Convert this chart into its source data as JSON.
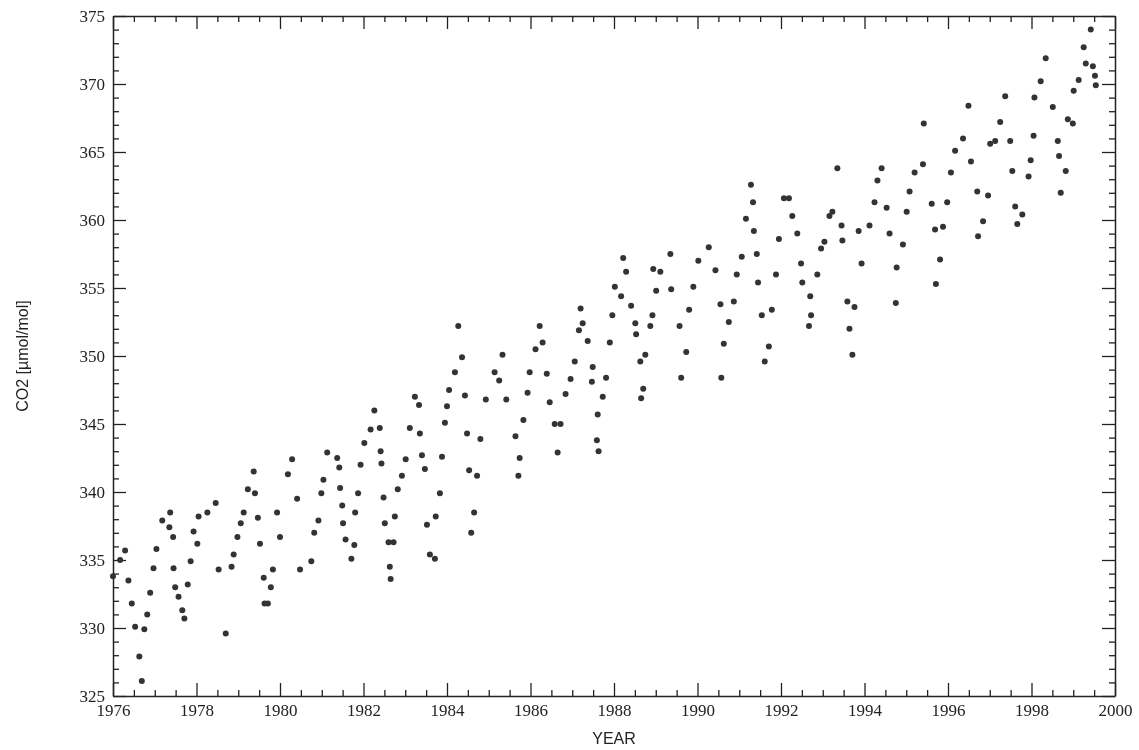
{
  "chart_data": {
    "type": "scatter",
    "xlabel": "YEAR",
    "ylabel": "CO2 [µmol/mol]",
    "marker": "circle",
    "grid": false,
    "xlim": [
      1976,
      2000
    ],
    "ylim": [
      325,
      375
    ],
    "xticks": [
      1976,
      {
        "value": 1976.5,
        "label": null
      },
      {
        "value": 1977,
        "label": null
      },
      {
        "value": 1977.5,
        "label": null
      },
      1978,
      {
        "value": 1978.5,
        "label": null
      },
      {
        "value": 1979,
        "label": null
      },
      {
        "value": 1979.5,
        "label": null
      },
      1980,
      {
        "value": 1980.5,
        "label": null
      },
      {
        "value": 1981,
        "label": null
      },
      {
        "value": 1981.5,
        "label": null
      },
      1982,
      {
        "value": 1982.5,
        "label": null
      },
      {
        "value": 1983,
        "label": null
      },
      {
        "value": 1983.5,
        "label": null
      },
      1984,
      {
        "value": 1984.5,
        "label": null
      },
      {
        "value": 1985,
        "label": null
      },
      {
        "value": 1985.5,
        "label": null
      },
      1986,
      {
        "value": 1986.5,
        "label": null
      },
      {
        "value": 1987,
        "label": null
      },
      {
        "value": 1987.5,
        "label": null
      },
      1988,
      {
        "value": 1988.5,
        "label": null
      },
      {
        "value": 1989,
        "label": null
      },
      {
        "value": 1989.5,
        "label": null
      },
      1990,
      {
        "value": 1990.5,
        "label": null
      },
      {
        "value": 1991,
        "label": null
      },
      {
        "value": 1991.5,
        "label": null
      },
      1992,
      {
        "value": 1992.5,
        "label": null
      },
      {
        "value": 1993,
        "label": null
      },
      {
        "value": 1993.5,
        "label": null
      },
      1994,
      {
        "value": 1994.5,
        "label": null
      },
      {
        "value": 1995,
        "label": null
      },
      {
        "value": 1995.5,
        "label": null
      },
      1996,
      {
        "value": 1996.5,
        "label": null
      },
      {
        "value": 1997,
        "label": null
      },
      {
        "value": 1997.5,
        "label": null
      },
      1998,
      {
        "value": 1998.5,
        "label": null
      },
      {
        "value": 1999,
        "label": null
      },
      {
        "value": 1999.5,
        "label": null
      },
      2000
    ],
    "yticks": [
      325,
      {
        "value": 326,
        "label": null
      },
      {
        "value": 327,
        "label": null
      },
      {
        "value": 328,
        "label": null
      },
      {
        "value": 329,
        "label": null
      },
      330,
      {
        "value": 331,
        "label": null
      },
      {
        "value": 332,
        "label": null
      },
      {
        "value": 333,
        "label": null
      },
      {
        "value": 334,
        "label": null
      },
      335,
      {
        "value": 336,
        "label": null
      },
      {
        "value": 337,
        "label": null
      },
      {
        "value": 338,
        "label": null
      },
      {
        "value": 339,
        "label": null
      },
      340,
      {
        "value": 341,
        "label": null
      },
      {
        "value": 342,
        "label": null
      },
      {
        "value": 343,
        "label": null
      },
      {
        "value": 344,
        "label": null
      },
      345,
      {
        "value": 346,
        "label": null
      },
      {
        "value": 347,
        "label": null
      },
      {
        "value": 348,
        "label": null
      },
      {
        "value": 349,
        "label": null
      },
      350,
      {
        "value": 351,
        "label": null
      },
      {
        "value": 352,
        "label": null
      },
      {
        "value": 353,
        "label": null
      },
      {
        "value": 354,
        "label": null
      },
      355,
      {
        "value": 356,
        "label": null
      },
      {
        "value": 357,
        "label": null
      },
      {
        "value": 358,
        "label": null
      },
      {
        "value": 359,
        "label": null
      },
      360,
      {
        "value": 361,
        "label": null
      },
      {
        "value": 362,
        "label": null
      },
      {
        "value": 363,
        "label": null
      },
      {
        "value": 364,
        "label": null
      },
      365,
      {
        "value": 366,
        "label": null
      },
      {
        "value": 367,
        "label": null
      },
      {
        "value": 368,
        "label": null
      },
      {
        "value": 369,
        "label": null
      },
      370,
      {
        "value": 371,
        "label": null
      },
      {
        "value": 372,
        "label": null
      },
      {
        "value": 373,
        "label": null
      },
      {
        "value": 374,
        "label": null
      },
      375
    ],
    "series": [
      {
        "color": "#333333",
        "x": [
          1976.0,
          1976.17,
          1976.29,
          1976.37,
          1976.45,
          1976.53,
          1976.63,
          1976.69,
          1976.75,
          1976.82,
          1976.89,
          1976.97,
          1977.04,
          1977.18,
          1977.37,
          1977.35,
          1977.44,
          1977.45,
          1977.49,
          1977.57,
          1977.66,
          1977.71,
          1977.79,
          1977.86,
          1977.93,
          1978.02,
          1978.05,
          1978.26,
          1978.46,
          1978.53,
          1978.7,
          1978.84,
          1978.89,
          1978.98,
          1979.06,
          1979.13,
          1979.23,
          1979.37,
          1979.4,
          1979.47,
          1979.52,
          1979.61,
          1979.63,
          1979.71,
          1979.78,
          1979.83,
          1979.93,
          1980.0,
          1980.19,
          1980.29,
          1980.41,
          1980.48,
          1980.75,
          1980.82,
          1980.92,
          1980.99,
          1981.04,
          1981.13,
          1981.37,
          1981.42,
          1981.44,
          1981.49,
          1981.51,
          1981.57,
          1981.71,
          1981.78,
          1981.8,
          1981.87,
          1981.93,
          1982.02,
          1982.17,
          1982.26,
          1982.39,
          1982.41,
          1982.43,
          1982.48,
          1982.51,
          1982.6,
          1982.63,
          1982.65,
          1982.72,
          1982.75,
          1982.82,
          1982.92,
          1983.01,
          1983.11,
          1983.23,
          1983.33,
          1983.35,
          1983.4,
          1983.47,
          1983.52,
          1983.59,
          1983.71,
          1983.73,
          1983.83,
          1983.88,
          1983.95,
          1984.0,
          1984.05,
          1984.19,
          1984.27,
          1984.36,
          1984.43,
          1984.48,
          1984.53,
          1984.58,
          1984.65,
          1984.72,
          1984.8,
          1984.93,
          1985.14,
          1985.25,
          1985.33,
          1985.42,
          1985.64,
          1985.71,
          1985.74,
          1985.83,
          1985.93,
          1985.98,
          1986.12,
          1986.22,
          1986.29,
          1986.39,
          1986.46,
          1986.58,
          1986.65,
          1986.72,
          1986.84,
          1986.96,
          1987.06,
          1987.16,
          1987.2,
          1987.25,
          1987.37,
          1987.47,
          1987.49,
          1987.59,
          1987.61,
          1987.63,
          1987.73,
          1987.81,
          1987.9,
          1987.96,
          1988.02,
          1988.17,
          1988.22,
          1988.29,
          1988.41,
          1988.51,
          1988.53,
          1988.63,
          1988.65,
          1988.7,
          1988.75,
          1988.87,
          1988.92,
          1988.94,
          1989.01,
          1989.11,
          1989.35,
          1989.37,
          1989.57,
          1989.61,
          1989.73,
          1989.8,
          1989.9,
          1990.02,
          1990.27,
          1990.43,
          1990.55,
          1990.57,
          1990.63,
          1990.75,
          1990.87,
          1990.94,
          1991.06,
          1991.16,
          1991.28,
          1991.33,
          1991.35,
          1991.42,
          1991.45,
          1991.54,
          1991.61,
          1991.71,
          1991.78,
          1991.88,
          1991.95,
          1992.07,
          1992.19,
          1992.27,
          1992.39,
          1992.48,
          1992.51,
          1992.67,
          1992.7,
          1992.72,
          1992.87,
          1992.96,
          1993.04,
          1993.16,
          1993.23,
          1993.35,
          1993.45,
          1993.47,
          1993.59,
          1993.64,
          1993.71,
          1993.76,
          1993.86,
          1993.93,
          1994.12,
          1994.24,
          1994.31,
          1994.41,
          1994.53,
          1994.6,
          1994.75,
          1994.77,
          1994.92,
          1995.01,
          1995.08,
          1995.2,
          1995.4,
          1995.42,
          1995.61,
          1995.69,
          1995.71,
          1995.81,
          1995.88,
          1995.98,
          1996.07,
          1996.17,
          1996.36,
          1996.49,
          1996.55,
          1996.7,
          1996.72,
          1996.84,
          1996.96,
          1997.01,
          1997.13,
          1997.25,
          1997.37,
          1997.49,
          1997.54,
          1997.61,
          1997.66,
          1997.78,
          1997.93,
          1997.98,
          1998.05,
          1998.07,
          1998.22,
          1998.34,
          1998.51,
          1998.63,
          1998.66,
          1998.7,
          1998.82,
          1998.87,
          1998.99,
          1999.01,
          1999.13,
          1999.25,
          1999.3,
          1999.42,
          1999.47,
          1999.52,
          1999.54
        ],
        "values": [
          333.8,
          335.0,
          335.7,
          333.5,
          331.8,
          330.1,
          327.9,
          326.1,
          329.9,
          331.0,
          332.6,
          334.4,
          335.8,
          337.9,
          338.5,
          337.4,
          336.7,
          334.4,
          333.0,
          332.3,
          331.3,
          330.7,
          333.2,
          334.9,
          337.1,
          336.2,
          338.2,
          338.5,
          339.2,
          334.3,
          329.6,
          334.5,
          335.4,
          336.7,
          337.7,
          338.5,
          340.2,
          341.5,
          339.9,
          338.1,
          336.2,
          333.7,
          331.8,
          331.8,
          333.0,
          334.3,
          338.5,
          336.7,
          341.3,
          342.4,
          339.5,
          334.3,
          334.9,
          337.0,
          337.9,
          339.9,
          340.9,
          342.9,
          342.5,
          341.8,
          340.3,
          339.0,
          337.7,
          336.5,
          335.1,
          336.1,
          338.5,
          339.9,
          342.0,
          343.6,
          344.6,
          346.0,
          344.7,
          343.0,
          342.1,
          339.6,
          337.7,
          336.3,
          334.5,
          333.6,
          336.3,
          338.2,
          340.2,
          341.2,
          342.4,
          344.7,
          347.0,
          346.4,
          344.3,
          342.7,
          341.7,
          337.6,
          335.4,
          335.1,
          338.2,
          339.9,
          342.6,
          345.1,
          346.3,
          347.5,
          348.8,
          352.2,
          349.9,
          347.1,
          344.3,
          341.6,
          337.0,
          338.5,
          341.2,
          343.9,
          346.8,
          348.8,
          348.2,
          350.1,
          346.8,
          344.1,
          341.2,
          342.5,
          345.3,
          347.3,
          348.8,
          350.5,
          352.2,
          351.0,
          348.7,
          346.6,
          345.0,
          342.9,
          345.0,
          347.2,
          348.3,
          349.6,
          351.9,
          353.5,
          352.4,
          351.1,
          348.1,
          349.2,
          343.8,
          345.7,
          343.0,
          347.0,
          348.4,
          351.0,
          353.0,
          355.1,
          354.4,
          357.2,
          356.2,
          353.7,
          352.4,
          351.6,
          349.6,
          346.9,
          347.6,
          350.1,
          352.2,
          353.0,
          356.4,
          354.8,
          356.2,
          357.5,
          354.9,
          352.2,
          348.4,
          350.3,
          353.4,
          355.1,
          357.0,
          358.0,
          356.3,
          353.8,
          348.4,
          350.9,
          352.5,
          354.0,
          356.0,
          357.3,
          360.1,
          362.6,
          361.3,
          359.2,
          357.5,
          355.4,
          353.0,
          349.6,
          350.7,
          353.4,
          356.0,
          358.6,
          361.6,
          361.6,
          360.3,
          359.0,
          356.8,
          355.4,
          352.2,
          354.4,
          353.0,
          356.0,
          357.9,
          358.4,
          360.3,
          360.6,
          363.8,
          359.6,
          358.5,
          354.0,
          352.0,
          350.1,
          353.6,
          359.2,
          356.8,
          359.6,
          361.3,
          362.9,
          363.8,
          360.9,
          359.0,
          353.9,
          356.5,
          358.2,
          360.6,
          362.1,
          363.5,
          364.1,
          367.1,
          361.2,
          359.3,
          355.3,
          357.1,
          359.5,
          361.3,
          363.5,
          365.1,
          366.0,
          368.4,
          364.3,
          362.1,
          358.8,
          359.9,
          361.8,
          365.6,
          365.8,
          367.2,
          369.1,
          365.8,
          363.6,
          361.0,
          359.7,
          360.4,
          363.2,
          364.4,
          366.2,
          369.0,
          370.2,
          371.9,
          368.3,
          365.8,
          364.7,
          362.0,
          363.6,
          367.4,
          367.1,
          369.5,
          370.3,
          372.7,
          371.5,
          374.0,
          371.3,
          370.6,
          369.9
        ]
      }
    ]
  }
}
